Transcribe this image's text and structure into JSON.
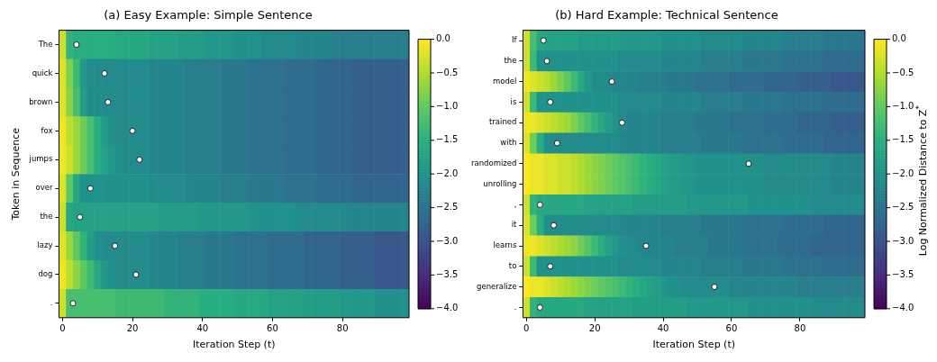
{
  "chart_data": [
    {
      "type": "heatmap",
      "title": "(a) Easy Example: Simple Sentence",
      "xlabel": "Iteration Step (t)",
      "ylabel": "Token in Sequence",
      "x": [
        0,
        2,
        4,
        6,
        8,
        10,
        12,
        14,
        16,
        18,
        20,
        22,
        24,
        26,
        28,
        30,
        32,
        34,
        36,
        38,
        40,
        42,
        44,
        46,
        48,
        50,
        52,
        54,
        56,
        58,
        60,
        62,
        64,
        66,
        68,
        70,
        72,
        74,
        76,
        78,
        80,
        82,
        84,
        86,
        88,
        90,
        92,
        94,
        96,
        98
      ],
      "xlim": [
        -1,
        99
      ],
      "xticks": [
        0,
        20,
        40,
        60,
        80
      ],
      "y_categories": [
        "The",
        "quick",
        "brown",
        "fox",
        "jumps",
        "over",
        "the",
        "lazy",
        "dog",
        "."
      ],
      "clim": [
        -4,
        0
      ],
      "cticks": [
        {
          "value": 0,
          "label": "0.0"
        },
        {
          "value": -0.5,
          "label": "−0.5"
        },
        {
          "value": -1,
          "label": "−1.0"
        },
        {
          "value": -1.5,
          "label": "−1.5"
        },
        {
          "value": -2,
          "label": "−2.0"
        },
        {
          "value": -2.5,
          "label": "−2.5"
        },
        {
          "value": -3,
          "label": "−3.0"
        },
        {
          "value": -3.5,
          "label": "−3.5"
        },
        {
          "value": -4,
          "label": "−4.0"
        }
      ],
      "cells": [
        [
          -0.3,
          -1.4,
          -1.5,
          -1.5,
          -1.5,
          -1.5,
          -1.5,
          -1.5,
          -1.6,
          -1.6,
          -1.6,
          -1.6,
          -1.6,
          -1.7,
          -1.7,
          -1.7,
          -1.7,
          -1.8,
          -1.8,
          -1.8,
          -1.8,
          -1.9,
          -1.9,
          -1.9,
          -1.9,
          -2.0,
          -2.0,
          -2.0,
          -2.0,
          -2.1,
          -2.1,
          -2.1,
          -2.1,
          -2.1,
          -2.2,
          -2.2,
          -2.2,
          -2.2,
          -2.2,
          -2.3,
          -2.3,
          -2.3,
          -2.3,
          -2.3,
          -2.3,
          -2.3,
          -2.3,
          -2.3,
          -2.3,
          -2.3
        ],
        [
          -0.2,
          -0.8,
          -1.3,
          -1.9,
          -2.1,
          -2.1,
          -2.1,
          -2.1,
          -2.1,
          -2.1,
          -2.1,
          -2.1,
          -2.1,
          -2.2,
          -2.2,
          -2.2,
          -2.2,
          -2.2,
          -2.3,
          -2.3,
          -2.3,
          -2.3,
          -2.3,
          -2.4,
          -2.4,
          -2.4,
          -2.4,
          -2.5,
          -2.5,
          -2.5,
          -2.5,
          -2.5,
          -2.6,
          -2.6,
          -2.6,
          -2.6,
          -2.6,
          -2.7,
          -2.7,
          -2.7,
          -2.7,
          -2.7,
          -2.8,
          -2.8,
          -2.8,
          -2.8,
          -2.8,
          -2.8,
          -2.8,
          -2.8
        ],
        [
          -0.2,
          -0.7,
          -1.2,
          -1.8,
          -2.1,
          -2.1,
          -2.1,
          -2.1,
          -2.1,
          -2.1,
          -2.1,
          -2.1,
          -2.1,
          -2.2,
          -2.2,
          -2.2,
          -2.2,
          -2.2,
          -2.3,
          -2.3,
          -2.3,
          -2.3,
          -2.3,
          -2.4,
          -2.4,
          -2.4,
          -2.4,
          -2.5,
          -2.5,
          -2.5,
          -2.5,
          -2.5,
          -2.6,
          -2.6,
          -2.6,
          -2.6,
          -2.6,
          -2.7,
          -2.7,
          -2.7,
          -2.7,
          -2.7,
          -2.8,
          -2.8,
          -2.8,
          -2.8,
          -2.8,
          -2.8,
          -2.8,
          -2.8
        ],
        [
          -0.1,
          -0.4,
          -0.6,
          -0.9,
          -1.2,
          -1.5,
          -1.8,
          -2.0,
          -2.1,
          -2.1,
          -2.1,
          -2.1,
          -2.1,
          -2.2,
          -2.2,
          -2.2,
          -2.2,
          -2.2,
          -2.3,
          -2.3,
          -2.3,
          -2.3,
          -2.3,
          -2.4,
          -2.4,
          -2.4,
          -2.4,
          -2.5,
          -2.5,
          -2.5,
          -2.5,
          -2.5,
          -2.6,
          -2.6,
          -2.6,
          -2.6,
          -2.6,
          -2.7,
          -2.7,
          -2.7,
          -2.7,
          -2.7,
          -2.8,
          -2.8,
          -2.8,
          -2.8,
          -2.8,
          -2.8,
          -2.8,
          -2.8
        ],
        [
          -0.1,
          -0.3,
          -0.6,
          -0.9,
          -1.2,
          -1.5,
          -1.7,
          -1.9,
          -2.0,
          -2.1,
          -2.1,
          -2.1,
          -2.1,
          -2.2,
          -2.2,
          -2.2,
          -2.2,
          -2.2,
          -2.3,
          -2.3,
          -2.3,
          -2.3,
          -2.3,
          -2.4,
          -2.4,
          -2.4,
          -2.4,
          -2.5,
          -2.5,
          -2.5,
          -2.5,
          -2.5,
          -2.6,
          -2.6,
          -2.6,
          -2.6,
          -2.6,
          -2.7,
          -2.7,
          -2.7,
          -2.7,
          -2.7,
          -2.8,
          -2.8,
          -2.8,
          -2.8,
          -2.8,
          -2.8,
          -2.8,
          -2.8
        ],
        [
          -0.2,
          -1.0,
          -1.6,
          -2.0,
          -2.0,
          -2.0,
          -2.0,
          -2.0,
          -2.0,
          -2.0,
          -2.0,
          -2.0,
          -2.0,
          -2.1,
          -2.1,
          -2.1,
          -2.1,
          -2.1,
          -2.2,
          -2.2,
          -2.2,
          -2.2,
          -2.2,
          -2.3,
          -2.3,
          -2.3,
          -2.3,
          -2.4,
          -2.4,
          -2.4,
          -2.4,
          -2.4,
          -2.5,
          -2.5,
          -2.5,
          -2.5,
          -2.5,
          -2.6,
          -2.6,
          -2.6,
          -2.6,
          -2.6,
          -2.7,
          -2.7,
          -2.7,
          -2.7,
          -2.7,
          -2.7,
          -2.7,
          -2.7
        ],
        [
          -0.3,
          -1.6,
          -1.7,
          -1.7,
          -1.7,
          -1.7,
          -1.7,
          -1.7,
          -1.7,
          -1.7,
          -1.7,
          -1.7,
          -1.7,
          -1.7,
          -1.8,
          -1.8,
          -1.8,
          -1.8,
          -1.8,
          -1.8,
          -1.9,
          -1.9,
          -1.9,
          -1.9,
          -1.9,
          -1.9,
          -1.9,
          -2.0,
          -2.0,
          -2.0,
          -2.0,
          -2.0,
          -2.0,
          -2.0,
          -2.1,
          -2.1,
          -2.1,
          -2.1,
          -2.1,
          -2.1,
          -2.1,
          -2.2,
          -2.2,
          -2.2,
          -2.2,
          -2.2,
          -2.2,
          -2.2,
          -2.2,
          -2.2
        ],
        [
          -0.2,
          -0.6,
          -1.0,
          -1.4,
          -1.8,
          -2.0,
          -2.1,
          -2.1,
          -2.1,
          -2.1,
          -2.1,
          -2.1,
          -2.1,
          -2.2,
          -2.2,
          -2.2,
          -2.2,
          -2.3,
          -2.3,
          -2.3,
          -2.3,
          -2.4,
          -2.4,
          -2.4,
          -2.4,
          -2.5,
          -2.5,
          -2.5,
          -2.5,
          -2.5,
          -2.6,
          -2.6,
          -2.6,
          -2.6,
          -2.6,
          -2.7,
          -2.7,
          -2.7,
          -2.7,
          -2.7,
          -2.8,
          -2.8,
          -2.8,
          -2.8,
          -2.8,
          -2.9,
          -2.9,
          -2.9,
          -2.9,
          -2.9
        ],
        [
          -0.1,
          -0.4,
          -0.7,
          -1.0,
          -1.3,
          -1.6,
          -1.9,
          -2.0,
          -2.1,
          -2.1,
          -2.1,
          -2.1,
          -2.1,
          -2.2,
          -2.2,
          -2.2,
          -2.2,
          -2.3,
          -2.3,
          -2.3,
          -2.3,
          -2.4,
          -2.4,
          -2.4,
          -2.4,
          -2.5,
          -2.5,
          -2.5,
          -2.5,
          -2.5,
          -2.6,
          -2.6,
          -2.6,
          -2.6,
          -2.6,
          -2.7,
          -2.7,
          -2.7,
          -2.7,
          -2.7,
          -2.8,
          -2.8,
          -2.8,
          -2.8,
          -2.8,
          -2.9,
          -2.9,
          -2.9,
          -2.9,
          -2.9
        ],
        [
          -0.3,
          -1.2,
          -1.2,
          -1.2,
          -1.2,
          -1.2,
          -1.2,
          -1.2,
          -1.3,
          -1.3,
          -1.3,
          -1.3,
          -1.3,
          -1.3,
          -1.3,
          -1.4,
          -1.4,
          -1.4,
          -1.4,
          -1.4,
          -1.5,
          -1.5,
          -1.5,
          -1.5,
          -1.5,
          -1.6,
          -1.6,
          -1.6,
          -1.6,
          -1.6,
          -1.7,
          -1.7,
          -1.7,
          -1.7,
          -1.7,
          -1.8,
          -1.8,
          -1.8,
          -1.8,
          -1.8,
          -1.9,
          -1.9,
          -1.9,
          -1.9,
          -1.9,
          -2.0,
          -2.0,
          -2.0,
          -2.0,
          -2.0
        ]
      ],
      "series": [
        {
          "type": "scatter",
          "color": "#ffffff",
          "x": [
            4,
            12,
            13,
            20,
            22,
            8,
            5,
            15,
            21,
            3
          ],
          "values": [
            0,
            1,
            2,
            3,
            4,
            5,
            6,
            7,
            8,
            9
          ]
        }
      ],
      "marker": "circle"
    },
    {
      "type": "heatmap",
      "title": "(b) Hard Example: Technical Sentence",
      "xlabel": "Iteration Step (t)",
      "x": [
        0,
        2,
        4,
        6,
        8,
        10,
        12,
        14,
        16,
        18,
        20,
        22,
        24,
        26,
        28,
        30,
        32,
        34,
        36,
        38,
        40,
        42,
        44,
        46,
        48,
        50,
        52,
        54,
        56,
        58,
        60,
        62,
        64,
        66,
        68,
        70,
        72,
        74,
        76,
        78,
        80,
        82,
        84,
        86,
        88,
        90,
        92,
        94,
        96,
        98
      ],
      "xlim": [
        -1,
        99
      ],
      "xticks": [
        0,
        20,
        40,
        60,
        80
      ],
      "y_categories": [
        "If",
        "the",
        "model",
        "is",
        "trained",
        "with",
        "randomized",
        "unrolling",
        ",",
        "it",
        "learns",
        "to",
        "generalize",
        "."
      ],
      "clim": [
        -4,
        0
      ],
      "cticks": [
        {
          "value": 0,
          "label": "0.0"
        },
        {
          "value": -0.5,
          "label": "−0.5"
        },
        {
          "value": -1,
          "label": "−1.0"
        },
        {
          "value": -1.5,
          "label": "−1.5"
        },
        {
          "value": -2,
          "label": "−2.0"
        },
        {
          "value": -2.5,
          "label": "−2.5"
        },
        {
          "value": -3,
          "label": "−3.0"
        },
        {
          "value": -3.5,
          "label": "−3.5"
        },
        {
          "value": -4,
          "label": "−4.0"
        }
      ],
      "clabel": "Log Normalized Distance to Z$^{*}$",
      "cells": [
        [
          -0.3,
          -1.2,
          -1.6,
          -1.7,
          -1.7,
          -1.7,
          -1.7,
          -1.7,
          -1.8,
          -1.8,
          -1.8,
          -1.8,
          -1.8,
          -1.8,
          -1.9,
          -1.9,
          -1.9,
          -1.9,
          -1.9,
          -1.9,
          -2.0,
          -2.0,
          -2.0,
          -2.0,
          -2.0,
          -2.0,
          -2.1,
          -2.1,
          -2.1,
          -2.1,
          -2.1,
          -2.1,
          -2.2,
          -2.2,
          -2.2,
          -2.2,
          -2.2,
          -2.2,
          -2.3,
          -2.3,
          -2.3,
          -2.3,
          -2.3,
          -2.3,
          -2.4,
          -2.4,
          -2.4,
          -2.4,
          -2.4,
          -2.4
        ],
        [
          -0.3,
          -1.3,
          -2.0,
          -2.0,
          -2.0,
          -2.0,
          -2.0,
          -2.0,
          -2.0,
          -2.0,
          -2.0,
          -2.0,
          -2.0,
          -2.0,
          -2.1,
          -2.1,
          -2.1,
          -2.1,
          -2.1,
          -2.1,
          -2.2,
          -2.2,
          -2.2,
          -2.2,
          -2.2,
          -2.2,
          -2.3,
          -2.3,
          -2.3,
          -2.3,
          -2.3,
          -2.3,
          -2.4,
          -2.4,
          -2.4,
          -2.4,
          -2.4,
          -2.4,
          -2.5,
          -2.5,
          -2.5,
          -2.5,
          -2.5,
          -2.5,
          -2.6,
          -2.6,
          -2.6,
          -2.6,
          -2.6,
          -2.6
        ],
        [
          -0.1,
          -0.2,
          -0.3,
          -0.4,
          -0.6,
          -0.8,
          -1.0,
          -1.3,
          -1.6,
          -1.9,
          -2.1,
          -2.1,
          -2.1,
          -2.2,
          -2.2,
          -2.2,
          -2.2,
          -2.3,
          -2.3,
          -2.3,
          -2.3,
          -2.4,
          -2.4,
          -2.4,
          -2.4,
          -2.5,
          -2.5,
          -2.5,
          -2.5,
          -2.5,
          -2.6,
          -2.6,
          -2.6,
          -2.6,
          -2.6,
          -2.7,
          -2.7,
          -2.7,
          -2.7,
          -2.7,
          -2.8,
          -2.8,
          -2.8,
          -2.8,
          -2.8,
          -2.9,
          -2.9,
          -2.9,
          -2.9,
          -2.9
        ],
        [
          -0.3,
          -1.3,
          -2.0,
          -2.0,
          -2.0,
          -2.0,
          -2.0,
          -2.0,
          -2.0,
          -2.0,
          -2.0,
          -2.0,
          -2.0,
          -2.0,
          -2.1,
          -2.1,
          -2.1,
          -2.1,
          -2.1,
          -2.1,
          -2.2,
          -2.2,
          -2.2,
          -2.2,
          -2.2,
          -2.2,
          -2.3,
          -2.3,
          -2.3,
          -2.3,
          -2.3,
          -2.3,
          -2.4,
          -2.4,
          -2.4,
          -2.4,
          -2.4,
          -2.4,
          -2.5,
          -2.5,
          -2.5,
          -2.5,
          -2.5,
          -2.5,
          -2.6,
          -2.6,
          -2.6,
          -2.6,
          -2.6,
          -2.6
        ],
        [
          -0.1,
          -0.1,
          -0.2,
          -0.3,
          -0.4,
          -0.5,
          -0.6,
          -0.8,
          -1.0,
          -1.2,
          -1.4,
          -1.6,
          -1.8,
          -2.0,
          -2.1,
          -2.2,
          -2.2,
          -2.2,
          -2.2,
          -2.2,
          -2.3,
          -2.3,
          -2.3,
          -2.3,
          -2.3,
          -2.4,
          -2.4,
          -2.4,
          -2.4,
          -2.4,
          -2.5,
          -2.5,
          -2.5,
          -2.5,
          -2.5,
          -2.6,
          -2.6,
          -2.6,
          -2.6,
          -2.6,
          -2.7,
          -2.7,
          -2.7,
          -2.7,
          -2.7,
          -2.8,
          -2.8,
          -2.8,
          -2.8,
          -2.8
        ],
        [
          -0.2,
          -0.9,
          -1.5,
          -2.0,
          -2.1,
          -2.1,
          -2.1,
          -2.1,
          -2.1,
          -2.1,
          -2.1,
          -2.1,
          -2.1,
          -2.1,
          -2.2,
          -2.2,
          -2.2,
          -2.2,
          -2.2,
          -2.2,
          -2.3,
          -2.3,
          -2.3,
          -2.3,
          -2.3,
          -2.3,
          -2.4,
          -2.4,
          -2.4,
          -2.4,
          -2.4,
          -2.4,
          -2.5,
          -2.5,
          -2.5,
          -2.5,
          -2.5,
          -2.5,
          -2.6,
          -2.6,
          -2.6,
          -2.6,
          -2.6,
          -2.6,
          -2.7,
          -2.7,
          -2.7,
          -2.7,
          -2.7,
          -2.7
        ],
        [
          0.0,
          -0.1,
          -0.1,
          -0.2,
          -0.2,
          -0.3,
          -0.3,
          -0.4,
          -0.5,
          -0.6,
          -0.7,
          -0.8,
          -0.9,
          -1.0,
          -1.1,
          -1.2,
          -1.3,
          -1.4,
          -1.5,
          -1.6,
          -1.7,
          -1.8,
          -1.8,
          -1.9,
          -1.9,
          -2.0,
          -2.0,
          -2.0,
          -2.0,
          -2.0,
          -2.0,
          -2.0,
          -2.0,
          -2.0,
          -2.0,
          -2.1,
          -2.1,
          -2.1,
          -2.1,
          -2.1,
          -2.1,
          -2.1,
          -2.1,
          -2.1,
          -2.1,
          -2.2,
          -2.2,
          -2.2,
          -2.2,
          -2.2
        ],
        [
          0.0,
          -0.1,
          -0.1,
          -0.2,
          -0.2,
          -0.3,
          -0.3,
          -0.4,
          -0.5,
          -0.6,
          -0.7,
          -0.8,
          -0.9,
          -1.0,
          -1.1,
          -1.2,
          -1.3,
          -1.4,
          -1.5,
          -1.6,
          -1.7,
          -1.8,
          -1.8,
          -1.9,
          -1.9,
          -2.0,
          -2.0,
          -2.0,
          -2.0,
          -2.0,
          -2.0,
          -2.0,
          -2.0,
          -2.0,
          -2.0,
          -2.1,
          -2.1,
          -2.1,
          -2.1,
          -2.1,
          -2.1,
          -2.1,
          -2.1,
          -2.1,
          -2.1,
          -2.2,
          -2.2,
          -2.2,
          -2.2,
          -2.2
        ],
        [
          -0.3,
          -1.4,
          -1.6,
          -1.6,
          -1.6,
          -1.6,
          -1.6,
          -1.6,
          -1.6,
          -1.7,
          -1.7,
          -1.7,
          -1.7,
          -1.7,
          -1.7,
          -1.7,
          -1.8,
          -1.8,
          -1.8,
          -1.8,
          -1.8,
          -1.8,
          -1.8,
          -1.8,
          -1.9,
          -1.9,
          -1.9,
          -1.9,
          -1.9,
          -1.9,
          -1.9,
          -1.9,
          -1.9,
          -2.0,
          -2.0,
          -2.0,
          -2.0,
          -2.0,
          -2.0,
          -2.0,
          -2.0,
          -2.0,
          -2.1,
          -2.1,
          -2.1,
          -2.1,
          -2.1,
          -2.1,
          -2.1,
          -2.1
        ],
        [
          -0.2,
          -0.9,
          -1.5,
          -2.0,
          -2.1,
          -2.1,
          -2.1,
          -2.1,
          -2.1,
          -2.1,
          -2.1,
          -2.1,
          -2.1,
          -2.1,
          -2.2,
          -2.2,
          -2.2,
          -2.2,
          -2.2,
          -2.2,
          -2.3,
          -2.3,
          -2.3,
          -2.3,
          -2.3,
          -2.3,
          -2.4,
          -2.4,
          -2.4,
          -2.4,
          -2.4,
          -2.4,
          -2.5,
          -2.5,
          -2.5,
          -2.5,
          -2.5,
          -2.5,
          -2.6,
          -2.6,
          -2.6,
          -2.6,
          -2.6,
          -2.6,
          -2.7,
          -2.7,
          -2.7,
          -2.7,
          -2.7,
          -2.7
        ],
        [
          -0.1,
          -0.1,
          -0.2,
          -0.3,
          -0.4,
          -0.5,
          -0.6,
          -0.7,
          -0.9,
          -1.1,
          -1.3,
          -1.5,
          -1.7,
          -1.9,
          -2.0,
          -2.1,
          -2.1,
          -2.2,
          -2.2,
          -2.2,
          -2.2,
          -2.2,
          -2.3,
          -2.3,
          -2.3,
          -2.3,
          -2.3,
          -2.4,
          -2.4,
          -2.4,
          -2.4,
          -2.4,
          -2.5,
          -2.5,
          -2.5,
          -2.5,
          -2.5,
          -2.6,
          -2.6,
          -2.6,
          -2.6,
          -2.6,
          -2.7,
          -2.7,
          -2.7,
          -2.7,
          -2.7,
          -2.7,
          -2.7,
          -2.7
        ],
        [
          -0.3,
          -1.3,
          -2.0,
          -2.0,
          -2.0,
          -2.0,
          -2.0,
          -2.0,
          -2.0,
          -2.0,
          -2.0,
          -2.0,
          -2.0,
          -2.0,
          -2.1,
          -2.1,
          -2.1,
          -2.1,
          -2.1,
          -2.1,
          -2.2,
          -2.2,
          -2.2,
          -2.2,
          -2.2,
          -2.2,
          -2.3,
          -2.3,
          -2.3,
          -2.3,
          -2.3,
          -2.3,
          -2.4,
          -2.4,
          -2.4,
          -2.4,
          -2.4,
          -2.4,
          -2.5,
          -2.5,
          -2.5,
          -2.5,
          -2.5,
          -2.5,
          -2.6,
          -2.6,
          -2.6,
          -2.6,
          -2.6,
          -2.6
        ],
        [
          0.0,
          -0.1,
          -0.1,
          -0.2,
          -0.3,
          -0.4,
          -0.5,
          -0.6,
          -0.7,
          -0.8,
          -0.9,
          -1.0,
          -1.1,
          -1.2,
          -1.3,
          -1.4,
          -1.5,
          -1.6,
          -1.7,
          -1.8,
          -1.9,
          -2.0,
          -2.0,
          -2.1,
          -2.1,
          -2.1,
          -2.1,
          -2.1,
          -2.1,
          -2.1,
          -2.2,
          -2.2,
          -2.2,
          -2.2,
          -2.2,
          -2.2,
          -2.2,
          -2.2,
          -2.2,
          -2.2,
          -2.3,
          -2.3,
          -2.3,
          -2.3,
          -2.3,
          -2.3,
          -2.3,
          -2.3,
          -2.3,
          -2.3
        ],
        [
          -0.3,
          -1.4,
          -1.6,
          -1.6,
          -1.6,
          -1.6,
          -1.6,
          -1.6,
          -1.6,
          -1.7,
          -1.7,
          -1.7,
          -1.7,
          -1.7,
          -1.7,
          -1.7,
          -1.8,
          -1.8,
          -1.8,
          -1.8,
          -1.8,
          -1.8,
          -1.8,
          -1.8,
          -1.9,
          -1.9,
          -1.9,
          -1.9,
          -1.9,
          -1.9,
          -1.9,
          -1.9,
          -1.9,
          -2.0,
          -2.0,
          -2.0,
          -2.0,
          -2.0,
          -2.0,
          -2.0,
          -2.0,
          -2.0,
          -2.1,
          -2.1,
          -2.1,
          -2.1,
          -2.1,
          -2.1,
          -2.1,
          -2.1
        ]
      ],
      "series": [
        {
          "type": "scatter",
          "color": "#ffffff",
          "x": [
            5,
            6,
            25,
            7,
            28,
            9,
            65,
            4,
            8,
            35,
            7,
            55,
            4
          ],
          "values": [
            0,
            1,
            2,
            3,
            4,
            5,
            6,
            8,
            9,
            10,
            11,
            12,
            13
          ]
        }
      ],
      "marker": "circle"
    }
  ]
}
